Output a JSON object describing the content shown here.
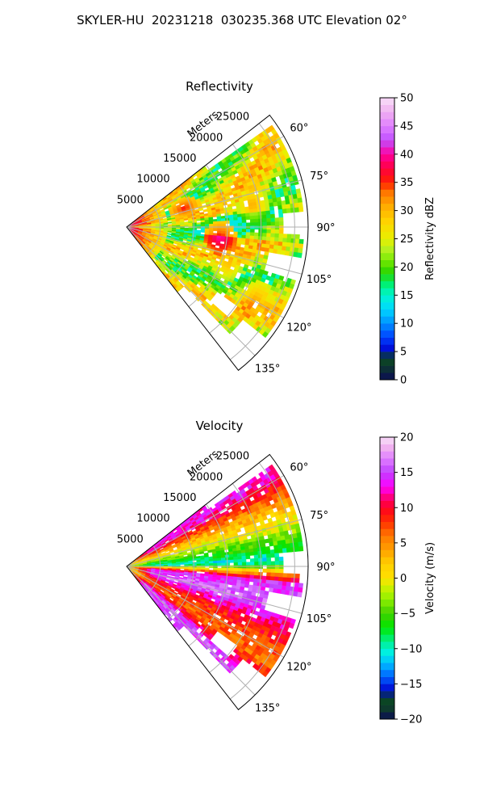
{
  "figure_title": "SKYLER-HU  20231218  030235.368 UTC Elevation 02°",
  "colors": {
    "grid": "#b0b0b0",
    "frame": "#000000",
    "background": "#ffffff"
  },
  "chart_data": [
    {
      "type": "heatmap",
      "subtype": "polar-sector radar PPI",
      "title": "Reflectivity",
      "range_axis_label": "Meters",
      "range_ticks": [
        5000,
        10000,
        15000,
        20000,
        25000
      ],
      "range_tick_labels": [
        "5000",
        "10000",
        "15000",
        "20000",
        "25000"
      ],
      "range_max": 27000,
      "azimuth_range": [
        52,
        142
      ],
      "azimuth_ticks": [
        60,
        75,
        90,
        105,
        120,
        135
      ],
      "azimuth_tick_labels": [
        "60°",
        "75°",
        "90°",
        "105°",
        "120°",
        "135°"
      ],
      "grid": true,
      "colorbar": {
        "label": "Reflectivity dBZ",
        "range": [
          0,
          50
        ],
        "ticks": [
          0,
          5,
          10,
          15,
          20,
          25,
          30,
          35,
          40,
          45,
          50
        ],
        "tick_labels": [
          "0",
          "5",
          "10",
          "15",
          "20",
          "25",
          "30",
          "35",
          "40",
          "45",
          "50"
        ],
        "stops": [
          [
            0,
            "#0b0b55"
          ],
          [
            2.5,
            "#0e3a2c"
          ],
          [
            4,
            "#0a4a20"
          ],
          [
            5,
            "#0000cc"
          ],
          [
            7.5,
            "#0040ff"
          ],
          [
            10,
            "#0090ff"
          ],
          [
            12.5,
            "#00d8ff"
          ],
          [
            15,
            "#00f5d0"
          ],
          [
            17,
            "#00f070"
          ],
          [
            19,
            "#28d400"
          ],
          [
            21,
            "#70e800"
          ],
          [
            23,
            "#b2f020"
          ],
          [
            25,
            "#e8f000"
          ],
          [
            28,
            "#ffd400"
          ],
          [
            31,
            "#ffa800"
          ],
          [
            33.5,
            "#ff7000"
          ],
          [
            35,
            "#ff2000"
          ],
          [
            37.5,
            "#ff0040"
          ],
          [
            40,
            "#ff00a0"
          ],
          [
            42.5,
            "#c050ff"
          ],
          [
            45,
            "#e080ff"
          ],
          [
            47.5,
            "#f0b0f0"
          ],
          [
            50,
            "#f8e0f8"
          ]
        ]
      },
      "field": {
        "description_values": "dBZ along radials: strong core near radar, mostly 18-32 dBZ",
        "near_radar_core": 40,
        "typical_min": 17,
        "typical_max": 33,
        "hot_spots": [
          {
            "azimuth": 72,
            "range_m": 9000,
            "value": 36
          },
          {
            "azimuth": 80,
            "range_m": 19000,
            "value": 31
          },
          {
            "azimuth": 110,
            "range_m": 16000,
            "value": 30
          },
          {
            "azimuth": 121,
            "range_m": 22000,
            "value": 32
          },
          {
            "azimuth": 96,
            "range_m": 14000,
            "value": 41
          }
        ]
      }
    },
    {
      "type": "heatmap",
      "subtype": "polar-sector radar PPI",
      "title": "Velocity",
      "range_axis_label": "Meters",
      "range_ticks": [
        5000,
        10000,
        15000,
        20000,
        25000
      ],
      "range_tick_labels": [
        "5000",
        "10000",
        "15000",
        "20000",
        "25000"
      ],
      "range_max": 27000,
      "azimuth_range": [
        52,
        142
      ],
      "azimuth_ticks": [
        60,
        75,
        90,
        105,
        120,
        135
      ],
      "azimuth_tick_labels": [
        "60°",
        "75°",
        "90°",
        "105°",
        "120°",
        "135°"
      ],
      "grid": true,
      "colorbar": {
        "label": "Velocity (m/s)",
        "range": [
          -20,
          20
        ],
        "ticks": [
          -20,
          -15,
          -10,
          -5,
          0,
          5,
          10,
          15,
          20
        ],
        "tick_labels": [
          "−20",
          "−15",
          "−10",
          "−5",
          "0",
          "5",
          "10",
          "15",
          "20"
        ],
        "stops": [
          [
            -20,
            "#0b0b55"
          ],
          [
            -18.5,
            "#0e3a2c"
          ],
          [
            -17,
            "#0a4a20"
          ],
          [
            -16,
            "#0000cc"
          ],
          [
            -14,
            "#0060ff"
          ],
          [
            -12,
            "#00c0ff"
          ],
          [
            -10.5,
            "#00f0e0"
          ],
          [
            -9,
            "#00f090"
          ],
          [
            -7,
            "#00e800"
          ],
          [
            -5,
            "#40d000"
          ],
          [
            -3,
            "#90f000"
          ],
          [
            -1,
            "#d8f000"
          ],
          [
            0,
            "#ffe000"
          ],
          [
            2,
            "#ffd000"
          ],
          [
            4,
            "#ffa000"
          ],
          [
            6,
            "#ff7800"
          ],
          [
            8,
            "#ff3000"
          ],
          [
            10,
            "#ff0020"
          ],
          [
            11.5,
            "#ff0080"
          ],
          [
            13,
            "#ff00ff"
          ],
          [
            15,
            "#c040ff"
          ],
          [
            17,
            "#e080ff"
          ],
          [
            18.5,
            "#f0b0f0"
          ],
          [
            20,
            "#f8e0f8"
          ]
        ]
      },
      "field": {
        "description_values": "radial velocity m/s, positive north of 90°, negative band near 85-95°, positive south",
        "near_radar": 0,
        "band_centers": [
          {
            "azimuth": 58,
            "value": 13
          },
          {
            "azimuth": 68,
            "value": 4
          },
          {
            "azimuth": 80,
            "value": -4
          },
          {
            "azimuth": 88,
            "value": -11
          },
          {
            "azimuth": 96,
            "value": 14
          },
          {
            "azimuth": 105,
            "value": 16
          },
          {
            "azimuth": 115,
            "value": 9
          },
          {
            "azimuth": 125,
            "value": 6
          },
          {
            "azimuth": 133,
            "value": 15
          }
        ]
      }
    }
  ]
}
